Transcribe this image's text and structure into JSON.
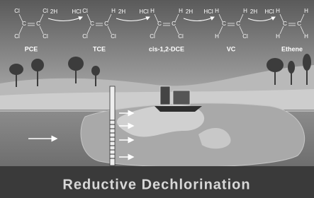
{
  "molecules": [
    {
      "name": "PCE",
      "atoms": [
        "Cl",
        "Cl",
        "Cl",
        "Cl"
      ],
      "carbons": [
        "C",
        "C"
      ]
    },
    {
      "name": "TCE",
      "atoms": [
        "Cl",
        "H",
        "Cl",
        "Cl"
      ],
      "carbons": [
        "C",
        "C"
      ]
    },
    {
      "name": "cis-1,2-DCE",
      "atoms": [
        "H",
        "H",
        "Cl",
        "Cl"
      ],
      "carbons": [
        "C",
        "C"
      ]
    },
    {
      "name": "VC",
      "atoms": [
        "H",
        "H",
        "H",
        "Cl"
      ],
      "carbons": [
        "C",
        "C"
      ]
    },
    {
      "name": "Ethene",
      "atoms": [
        "H",
        "H",
        "H",
        "H"
      ],
      "carbons": [
        "C",
        "C"
      ]
    }
  ],
  "steps": [
    {
      "reactant": "2H",
      "product": "HCl"
    },
    {
      "reactant": "2H",
      "product": "HCl"
    },
    {
      "reactant": "2H",
      "product": "HCl"
    },
    {
      "reactant": "2H",
      "product": "HCl"
    }
  ],
  "title": "Reductive Dechlorination"
}
